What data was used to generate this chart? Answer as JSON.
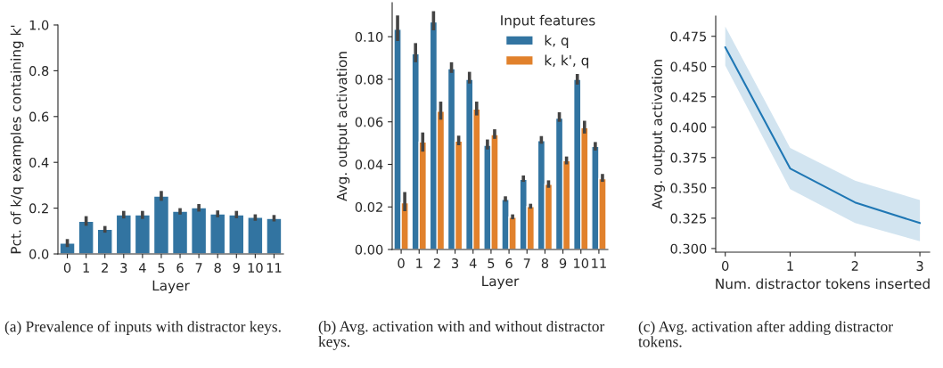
{
  "chart_data": [
    {
      "type": "bar",
      "categories": [
        "0",
        "1",
        "2",
        "3",
        "4",
        "5",
        "6",
        "7",
        "8",
        "9",
        "10",
        "11"
      ],
      "xlabel": "Layer",
      "ylabel": "Pct. of k/q examples containing k'",
      "series": [
        {
          "color": "#3274a1",
          "values": [
            0.047,
            0.143,
            0.108,
            0.171,
            0.171,
            0.253,
            0.187,
            0.202,
            0.175,
            0.171,
            0.16,
            0.155
          ],
          "errors": [
            [
              0.03,
              0.065
            ],
            [
              0.123,
              0.165
            ],
            [
              0.093,
              0.122
            ],
            [
              0.155,
              0.188
            ],
            [
              0.153,
              0.188
            ],
            [
              0.232,
              0.275
            ],
            [
              0.172,
              0.2
            ],
            [
              0.185,
              0.218
            ],
            [
              0.16,
              0.19
            ],
            [
              0.156,
              0.188
            ],
            [
              0.145,
              0.173
            ],
            [
              0.142,
              0.17
            ]
          ]
        }
      ],
      "ylim": [
        0,
        1.0
      ],
      "yticks": [
        {
          "value": 0,
          "label": "0.0"
        },
        {
          "value": 0.2,
          "label": "0.2"
        },
        {
          "value": 0.4,
          "label": "0.4"
        },
        {
          "value": 0.6,
          "label": "0.6"
        },
        {
          "value": 0.8,
          "label": "0.8"
        },
        {
          "value": 1.0,
          "label": "1.0"
        }
      ],
      "annotations": [
        "(a) Prevalence of inputs with distractor keys."
      ]
    },
    {
      "type": "bar",
      "categories": [
        "0",
        "1",
        "2",
        "3",
        "4",
        "5",
        "6",
        "7",
        "8",
        "9",
        "10",
        "11"
      ],
      "xlabel": "Layer",
      "ylabel": "Avg. output activation",
      "legend": "top right",
      "legend_title": "Input features",
      "series": [
        {
          "name": "k, q",
          "color": "#3274a1",
          "values": [
            0.1035,
            0.092,
            0.107,
            0.085,
            0.08,
            0.049,
            0.0235,
            0.033,
            0.0512,
            0.0617,
            0.08,
            0.0484
          ],
          "errors": [
            [
              0.098,
              0.11
            ],
            [
              0.088,
              0.097
            ],
            [
              0.103,
              0.112
            ],
            [
              0.083,
              0.088
            ],
            [
              0.078,
              0.0835
            ],
            [
              0.047,
              0.0517
            ],
            [
              0.0225,
              0.025
            ],
            [
              0.0318,
              0.0348
            ],
            [
              0.0497,
              0.0533
            ],
            [
              0.06,
              0.0645
            ],
            [
              0.0775,
              0.0825
            ],
            [
              0.0465,
              0.0505
            ]
          ]
        },
        {
          "name": "k, k', q",
          "color": "#e1812c",
          "values": [
            0.022,
            0.0505,
            0.065,
            0.051,
            0.066,
            0.054,
            0.0152,
            0.0202,
            0.0307,
            0.0417,
            0.0572,
            0.0333
          ],
          "errors": [
            [
              0.018,
              0.027
            ],
            [
              0.046,
              0.055
            ],
            [
              0.061,
              0.0695
            ],
            [
              0.049,
              0.0535
            ],
            [
              0.063,
              0.0695
            ],
            [
              0.052,
              0.0565
            ],
            [
              0.0142,
              0.0165
            ],
            [
              0.0192,
              0.0215
            ],
            [
              0.029,
              0.0325
            ],
            [
              0.04,
              0.0437
            ],
            [
              0.0545,
              0.0605
            ],
            [
              0.0318,
              0.0355
            ]
          ]
        }
      ],
      "ylim": [
        0,
        0.116
      ],
      "yticks": [
        {
          "value": 0,
          "label": "0.00"
        },
        {
          "value": 0.02,
          "label": "0.02"
        },
        {
          "value": 0.04,
          "label": "0.04"
        },
        {
          "value": 0.06,
          "label": "0.06"
        },
        {
          "value": 0.08,
          "label": "0.08"
        },
        {
          "value": 0.1,
          "label": "0.10"
        }
      ],
      "annotations": [
        "(b) Avg. activation with and without distractor keys."
      ]
    },
    {
      "type": "line",
      "x": [
        0,
        1,
        2,
        3
      ],
      "xlabel": "Num. distractor tokens inserted",
      "ylabel": "Avg. output activation",
      "series": [
        {
          "color": "#1f77b4",
          "values": [
            0.466,
            0.366,
            0.338,
            0.321
          ],
          "lower": [
            0.451,
            0.349,
            0.321,
            0.306
          ],
          "upper": [
            0.483,
            0.383,
            0.356,
            0.34
          ]
        }
      ],
      "xlim": [
        -0.147,
        3.15
      ],
      "xticks": [
        0,
        1,
        2,
        3
      ],
      "ylim": [
        0.297,
        0.4917
      ],
      "yticks": [
        {
          "value": 0.3,
          "label": "0.300"
        },
        {
          "value": 0.325,
          "label": "0.325"
        },
        {
          "value": 0.35,
          "label": "0.350"
        },
        {
          "value": 0.375,
          "label": "0.375"
        },
        {
          "value": 0.4,
          "label": "0.400"
        },
        {
          "value": 0.425,
          "label": "0.425"
        },
        {
          "value": 0.45,
          "label": "0.450"
        },
        {
          "value": 0.475,
          "label": "0.475"
        }
      ],
      "annotations": [
        "(c) Avg. activation after adding distractor tokens."
      ]
    }
  ]
}
